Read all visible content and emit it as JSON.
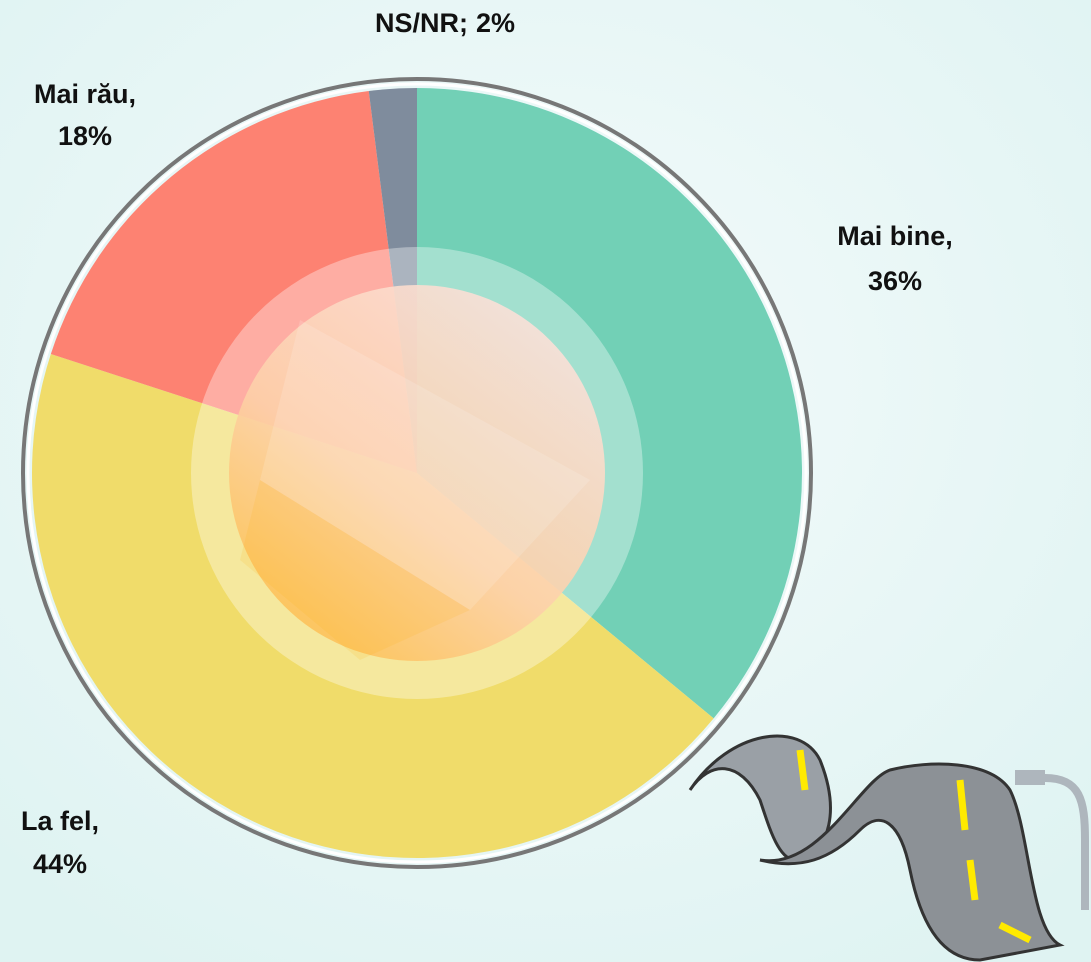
{
  "chart_data": {
    "type": "pie",
    "categories": [
      "Mai bine,",
      "La fel,",
      "Mai rău,",
      "NS/NR;"
    ],
    "values": [
      36,
      44,
      18,
      2
    ],
    "value_labels": [
      "36%",
      "44%",
      "18%",
      "2%"
    ],
    "colors": [
      "#72d0b6",
      "#f0dc6a",
      "#fd8272",
      "#7f8c9d"
    ]
  }
}
